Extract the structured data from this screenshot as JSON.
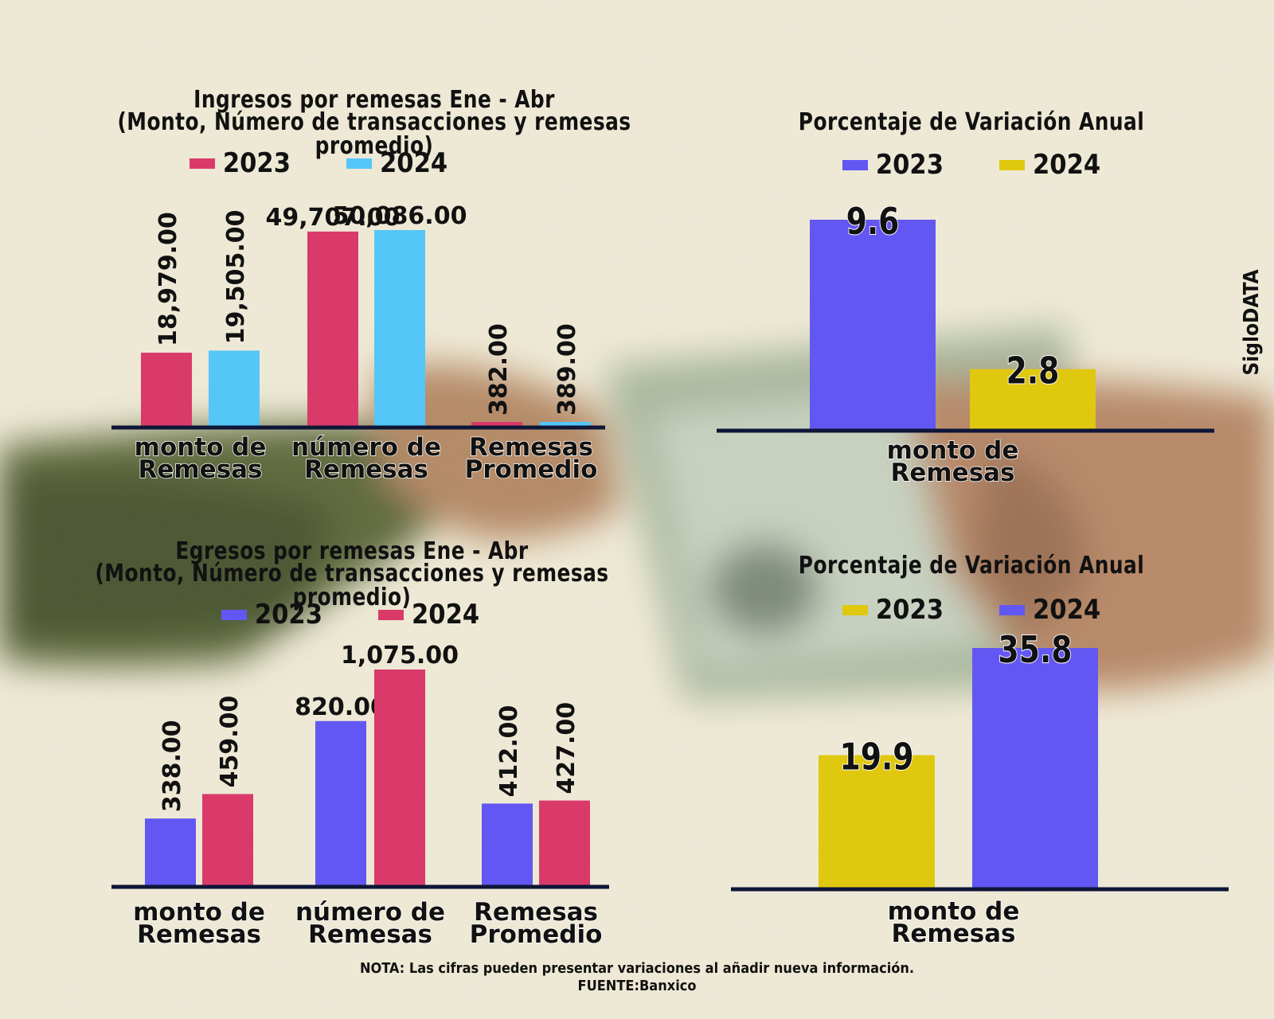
{
  "colors": {
    "crimson": "#d93a6a",
    "skyblue": "#55c6f8",
    "violet": "#6257f2",
    "gold": "#e0c80f",
    "axis": "#0e1638",
    "background": "#efead6"
  },
  "brand": "SigloDATA",
  "note": {
    "line1": "NOTA: Las cifras pueden presentar variaciones al añadir nueva información.",
    "line2": "FUENTE:Banxico"
  },
  "chart_data": [
    {
      "type": "bar",
      "title": "Ingresos por remesas Ene - Abr",
      "subtitle": "(Monto, Número de transacciones y remesas promedio)",
      "categories": [
        "monto de Remesas",
        "número de Remesas",
        "Remesas Promedio"
      ],
      "series": [
        {
          "name": "2023",
          "color": "#d93a6a",
          "values": [
            18979,
            49707,
            382
          ],
          "labels": [
            "18,979.00",
            "49,707.00",
            "382.00"
          ]
        },
        {
          "name": "2024",
          "color": "#55c6f8",
          "values": [
            19505,
            50086,
            389
          ],
          "labels": [
            "19,505.00",
            "50,086.00",
            "389.00"
          ]
        }
      ],
      "label_orientation": [
        "vertical",
        "horizontal",
        "vertical"
      ],
      "ylim": [
        0,
        50086
      ],
      "grid": false,
      "legend": "top"
    },
    {
      "type": "bar",
      "title": "Porcentaje de Variación Anual",
      "categories": [
        "monto de Remesas"
      ],
      "series": [
        {
          "name": "2023",
          "color": "#6257f2",
          "values": [
            9.6
          ],
          "labels": [
            "9.6"
          ]
        },
        {
          "name": "2024",
          "color": "#e0c80f",
          "values": [
            2.8
          ],
          "labels": [
            "2.8"
          ]
        }
      ],
      "ylim": [
        0,
        9.6
      ],
      "grid": false,
      "legend": "top"
    },
    {
      "type": "bar",
      "title": "Egresos por remesas Ene - Abr",
      "subtitle": "(Monto, Número de transacciones y remesas promedio)",
      "categories": [
        "monto de Remesas",
        "número de Remesas",
        "Remesas Promedio"
      ],
      "series": [
        {
          "name": "2023",
          "color": "#6257f2",
          "values": [
            338,
            820,
            412
          ],
          "labels": [
            "338.00",
            "820.00",
            "412.00"
          ]
        },
        {
          "name": "2024",
          "color": "#d93a6a",
          "values": [
            459,
            1075,
            427
          ],
          "labels": [
            "459.00",
            "1,075.00",
            "427.00"
          ]
        }
      ],
      "label_orientation": [
        "vertical",
        "horizontal",
        "vertical"
      ],
      "ylim": [
        0,
        1075
      ],
      "grid": false,
      "legend": "top"
    },
    {
      "type": "bar",
      "title": "Porcentaje de Variación Anual",
      "categories": [
        "monto de Remesas"
      ],
      "series": [
        {
          "name": "2023",
          "color": "#e0c80f",
          "values": [
            19.9
          ],
          "labels": [
            "19.9"
          ]
        },
        {
          "name": "2024",
          "color": "#6257f2",
          "values": [
            35.8
          ],
          "labels": [
            "35.8"
          ]
        }
      ],
      "ylim": [
        0,
        35.8
      ],
      "grid": false,
      "legend": "top"
    }
  ]
}
